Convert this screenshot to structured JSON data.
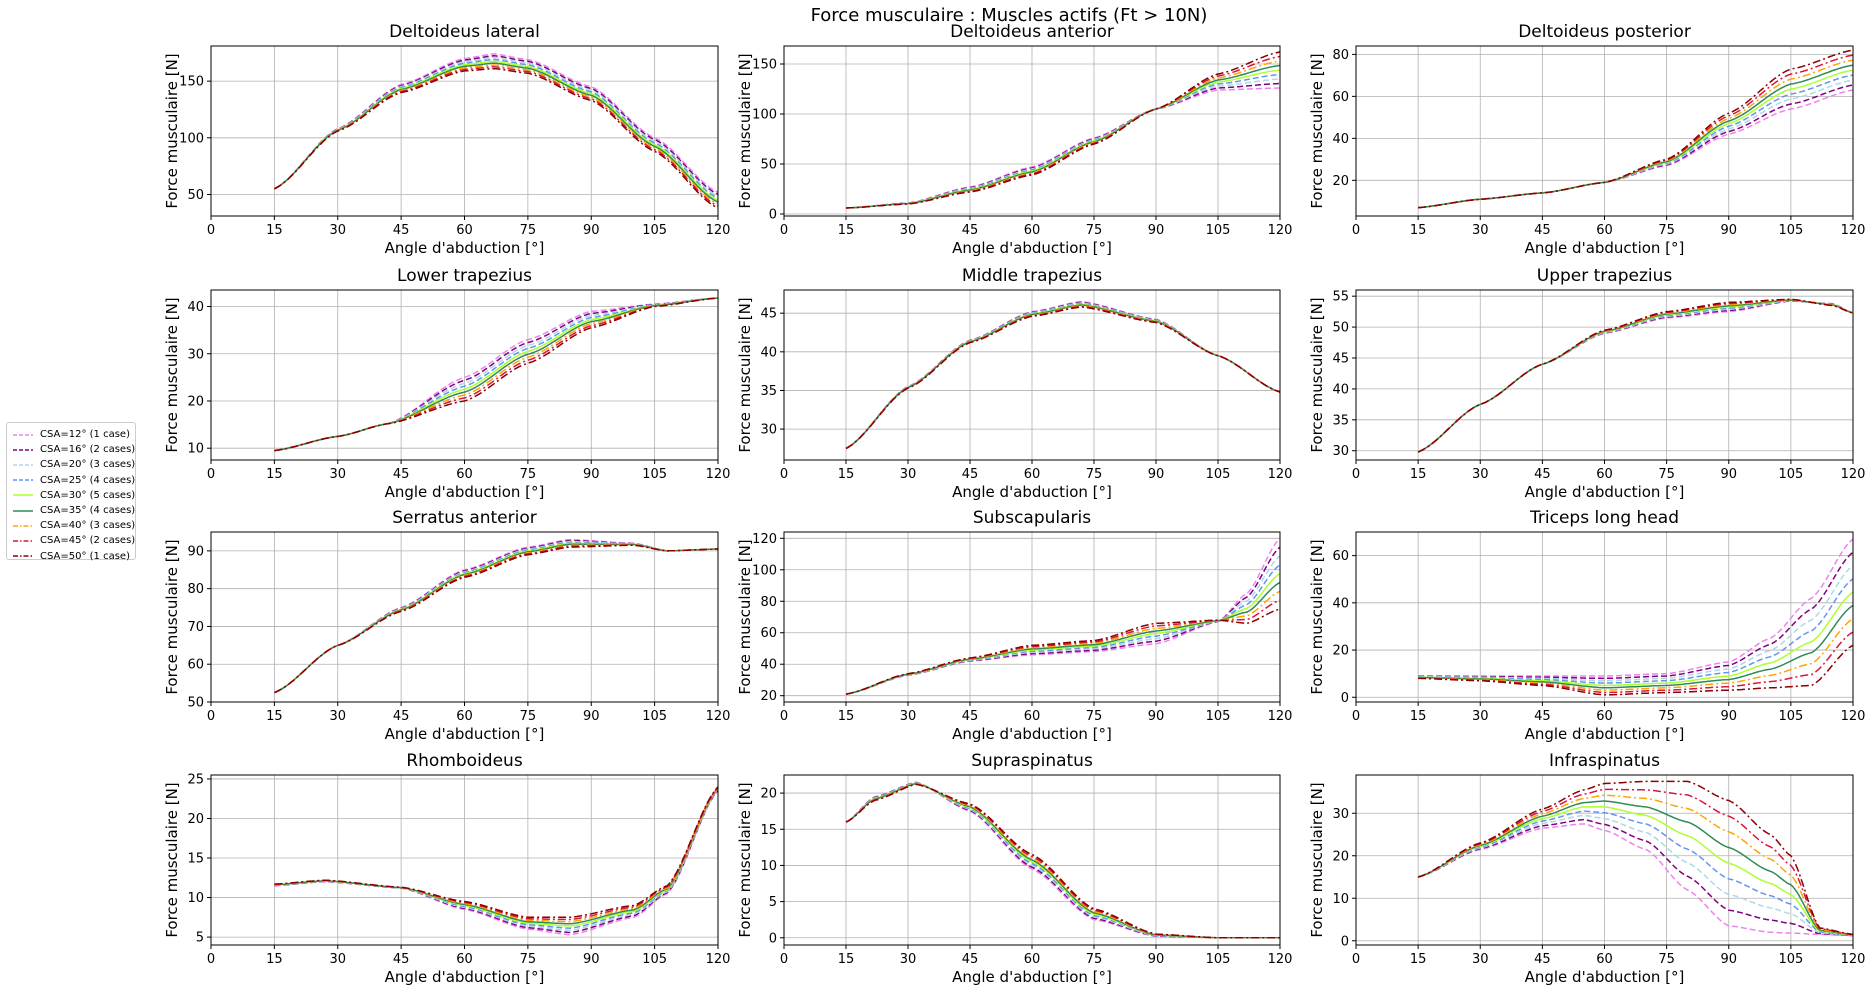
{
  "figure": {
    "suptitle": "Force musculaire : Muscles actifs (Ft > 10N)"
  },
  "legend": {
    "placement": "left-center",
    "entries": [
      {
        "label": "CSA=12° (1 case)",
        "color": "#ee82ee",
        "dash": "dashed"
      },
      {
        "label": "CSA=16° (2 cases)",
        "color": "#800080",
        "dash": "dashed"
      },
      {
        "label": "CSA=20° (3 cases)",
        "color": "#add8e6",
        "dash": "dashed"
      },
      {
        "label": "CSA=25° (4 cases)",
        "color": "#6495ed",
        "dash": "dashed"
      },
      {
        "label": "CSA=30° (5 cases)",
        "color": "#adff2f",
        "dash": "solid"
      },
      {
        "label": "CSA=35° (4 cases)",
        "color": "#2e8b57",
        "dash": "solid"
      },
      {
        "label": "CSA=40° (3 cases)",
        "color": "#ffa500",
        "dash": "dashdot"
      },
      {
        "label": "CSA=45° (2 cases)",
        "color": "#dc143c",
        "dash": "dashdot"
      },
      {
        "label": "CSA=50° (1 case)",
        "color": "#8b0000",
        "dash": "dashdot"
      }
    ]
  },
  "chart_data": [
    {
      "type": "line",
      "title": "Deltoideus lateral",
      "xlabel": "Angle d'abduction [°]",
      "ylabel": "Force musculaire [N]",
      "xlim": [
        0,
        120
      ],
      "ylim": [
        31,
        181
      ],
      "xticks": [
        0,
        15,
        30,
        45,
        60,
        75,
        90,
        105,
        120
      ],
      "yticks": [
        50,
        100,
        150
      ],
      "x": [
        15,
        30,
        45,
        60,
        67,
        75,
        90,
        105,
        120
      ],
      "series": [
        {
          "values": [
            55,
            108,
            147,
            170,
            174,
            169,
            145,
            100,
            52
          ]
        },
        {
          "values": [
            55,
            106,
            140,
            159,
            161,
            157,
            133,
            88,
            38
          ]
        }
      ]
    },
    {
      "type": "line",
      "title": "Deltoideus anterior",
      "xlabel": "Angle d'abduction [°]",
      "ylabel": "Force musculaire [N]",
      "xlim": [
        0,
        120
      ],
      "ylim": [
        -2,
        168
      ],
      "xticks": [
        0,
        15,
        30,
        45,
        60,
        75,
        90,
        105,
        120
      ],
      "yticks": [
        0,
        50,
        100,
        150
      ],
      "x": [
        15,
        30,
        45,
        60,
        75,
        90,
        105,
        120
      ],
      "series": [
        {
          "values": [
            6,
            11,
            27,
            47,
            76,
            105,
            124,
            126
          ]
        },
        {
          "values": [
            6,
            10,
            22,
            39,
            70,
            105,
            140,
            162
          ]
        }
      ]
    },
    {
      "type": "line",
      "title": "Deltoideus posterior",
      "xlabel": "Angle d'abduction [°]",
      "ylabel": "Force musculaire [N]",
      "xlim": [
        0,
        120
      ],
      "ylim": [
        3,
        84
      ],
      "xticks": [
        0,
        15,
        30,
        45,
        60,
        75,
        90,
        105,
        120
      ],
      "yticks": [
        20,
        40,
        60,
        80
      ],
      "x": [
        15,
        30,
        45,
        60,
        75,
        90,
        105,
        120
      ],
      "series": [
        {
          "values": [
            7,
            11,
            14,
            19,
            27,
            42,
            54,
            63
          ]
        },
        {
          "values": [
            7,
            11,
            14,
            19,
            30,
            52,
            73,
            82
          ]
        }
      ]
    },
    {
      "type": "line",
      "title": "Lower trapezius",
      "xlabel": "Angle d'abduction [°]",
      "ylabel": "Force musculaire [N]",
      "xlim": [
        0,
        120
      ],
      "ylim": [
        7.5,
        43.5
      ],
      "xticks": [
        0,
        15,
        30,
        45,
        60,
        75,
        90,
        105,
        120
      ],
      "yticks": [
        10,
        20,
        30,
        40
      ],
      "x": [
        15,
        30,
        42,
        60,
        75,
        90,
        105,
        120
      ],
      "series": [
        {
          "values": [
            9.5,
            12.5,
            15.2,
            25,
            33,
            39,
            40.5,
            41.8
          ]
        },
        {
          "values": [
            9.5,
            12.5,
            15.2,
            20,
            28,
            35.5,
            40,
            41.8
          ]
        }
      ]
    },
    {
      "type": "line",
      "title": "Middle trapezius",
      "xlabel": "Angle d'abduction [°]",
      "ylabel": "Force musculaire [N]",
      "xlim": [
        0,
        120
      ],
      "ylim": [
        26,
        48
      ],
      "xticks": [
        0,
        15,
        30,
        45,
        60,
        75,
        90,
        105,
        120
      ],
      "yticks": [
        30,
        35,
        40,
        45
      ],
      "x": [
        15,
        30,
        45,
        60,
        72,
        90,
        105,
        120
      ],
      "series": [
        {
          "values": [
            27.5,
            35.5,
            41.5,
            45.2,
            46.5,
            44.2,
            39.5,
            34.8
          ]
        },
        {
          "values": [
            27.5,
            35.3,
            41.2,
            44.6,
            45.8,
            43.8,
            39.5,
            34.8
          ]
        }
      ]
    },
    {
      "type": "line",
      "title": "Upper trapezius",
      "xlabel": "Angle d'abduction [°]",
      "ylabel": "Force musculaire [N]",
      "xlim": [
        0,
        120
      ],
      "ylim": [
        28.5,
        56
      ],
      "xticks": [
        0,
        15,
        30,
        45,
        60,
        75,
        90,
        105,
        120
      ],
      "yticks": [
        30,
        35,
        40,
        45,
        50,
        55
      ],
      "x": [
        15,
        30,
        45,
        60,
        75,
        90,
        105,
        115,
        120
      ],
      "series": [
        {
          "values": [
            29.8,
            37.5,
            44,
            49,
            51.5,
            52.5,
            54.2,
            53.8,
            52.3
          ]
        },
        {
          "values": [
            29.8,
            37.5,
            44,
            49.5,
            52.5,
            54,
            54.5,
            53.5,
            52.3
          ]
        }
      ]
    },
    {
      "type": "line",
      "title": "Serratus anterior",
      "xlabel": "Angle d'abduction [°]",
      "ylabel": "Force musculaire [N]",
      "xlim": [
        0,
        120
      ],
      "ylim": [
        50,
        95
      ],
      "xticks": [
        0,
        15,
        30,
        45,
        60,
        75,
        90,
        105,
        120
      ],
      "yticks": [
        50,
        60,
        70,
        80,
        90
      ],
      "x": [
        15,
        30,
        45,
        60,
        75,
        85,
        100,
        108,
        120
      ],
      "series": [
        {
          "values": [
            52.5,
            65,
            75,
            85,
            91,
            93,
            92,
            90,
            90.5
          ]
        },
        {
          "values": [
            52.5,
            65,
            74,
            83,
            89,
            91,
            91.5,
            90,
            90.5
          ]
        }
      ]
    },
    {
      "type": "line",
      "title": "Subscapularis",
      "xlabel": "Angle d'abduction [°]",
      "ylabel": "Force musculaire [N]",
      "xlim": [
        0,
        120
      ],
      "ylim": [
        16,
        124
      ],
      "xticks": [
        0,
        15,
        30,
        45,
        60,
        75,
        90,
        105,
        120
      ],
      "yticks": [
        20,
        40,
        60,
        80,
        100,
        120
      ],
      "x": [
        15,
        30,
        45,
        60,
        75,
        90,
        105,
        112,
        120
      ],
      "series": [
        {
          "values": [
            21,
            33,
            42,
            46,
            48,
            53,
            67,
            85,
            120
          ]
        },
        {
          "values": [
            21,
            34,
            44,
            52,
            55,
            66,
            68,
            66,
            75
          ]
        }
      ]
    },
    {
      "type": "line",
      "title": "Triceps long head",
      "xlabel": "Angle d'abduction [°]",
      "ylabel": "Force musculaire [N]",
      "xlim": [
        0,
        120
      ],
      "ylim": [
        -2,
        70
      ],
      "xticks": [
        0,
        15,
        30,
        45,
        60,
        75,
        90,
        105,
        120
      ],
      "yticks": [
        0,
        20,
        40,
        60
      ],
      "x": [
        15,
        30,
        45,
        60,
        75,
        90,
        100,
        110,
        120
      ],
      "series": [
        {
          "values": [
            9,
            9,
            9,
            9,
            10,
            15,
            25,
            42,
            67
          ]
        },
        {
          "values": [
            8,
            7,
            5,
            1,
            2,
            3,
            4,
            5,
            22
          ]
        }
      ]
    },
    {
      "type": "line",
      "title": "Rhomboideus",
      "xlabel": "Angle d'abduction [°]",
      "ylabel": "Force musculaire [N]",
      "xlim": [
        0,
        120
      ],
      "ylim": [
        4,
        25.5
      ],
      "xticks": [
        0,
        15,
        30,
        45,
        60,
        75,
        90,
        105,
        120
      ],
      "yticks": [
        5,
        10,
        15,
        20,
        25
      ],
      "x": [
        15,
        27,
        45,
        60,
        75,
        85,
        100,
        108,
        120
      ],
      "series": [
        {
          "values": [
            11.5,
            12,
            11.2,
            8.5,
            6,
            5.3,
            7.5,
            10.5,
            23.5
          ]
        },
        {
          "values": [
            11.7,
            12.2,
            11.3,
            9.5,
            7.5,
            7.5,
            9,
            11.5,
            24
          ]
        }
      ]
    },
    {
      "type": "line",
      "title": "Supraspinatus",
      "xlabel": "Angle d'abduction [°]",
      "ylabel": "Force musculaire [N]",
      "xlim": [
        0,
        120
      ],
      "ylim": [
        -1,
        22.5
      ],
      "xticks": [
        0,
        15,
        30,
        45,
        60,
        75,
        90,
        105,
        120
      ],
      "yticks": [
        0,
        5,
        10,
        15,
        20
      ],
      "x": [
        15,
        22,
        32,
        45,
        60,
        75,
        90,
        105,
        120
      ],
      "series": [
        {
          "values": [
            16,
            19.5,
            21.5,
            17.5,
            9.5,
            2.5,
            0.2,
            0,
            0
          ]
        },
        {
          "values": [
            16,
            19,
            21.2,
            18.5,
            11.5,
            4,
            0.5,
            0,
            0
          ]
        }
      ]
    },
    {
      "type": "line",
      "title": "Infraspinatus",
      "xlabel": "Angle d'abduction [°]",
      "ylabel": "Force musculaire [N]",
      "xlim": [
        0,
        120
      ],
      "ylim": [
        -1,
        39
      ],
      "xticks": [
        0,
        15,
        30,
        45,
        60,
        75,
        90,
        105,
        120
      ],
      "yticks": [
        0,
        10,
        20,
        30
      ],
      "x": [
        15,
        30,
        45,
        55,
        60,
        70,
        80,
        90,
        100,
        105,
        112,
        120
      ],
      "series": [
        {
          "values": [
            15,
            21.5,
            26.5,
            27.5,
            26,
            21.5,
            12,
            3.5,
            2,
            1.8,
            1.5,
            1.2
          ]
        },
        {
          "values": [
            15,
            23,
            31,
            35.5,
            37,
            37.5,
            37.5,
            33,
            25,
            20,
            3,
            1.5
          ]
        }
      ]
    }
  ]
}
